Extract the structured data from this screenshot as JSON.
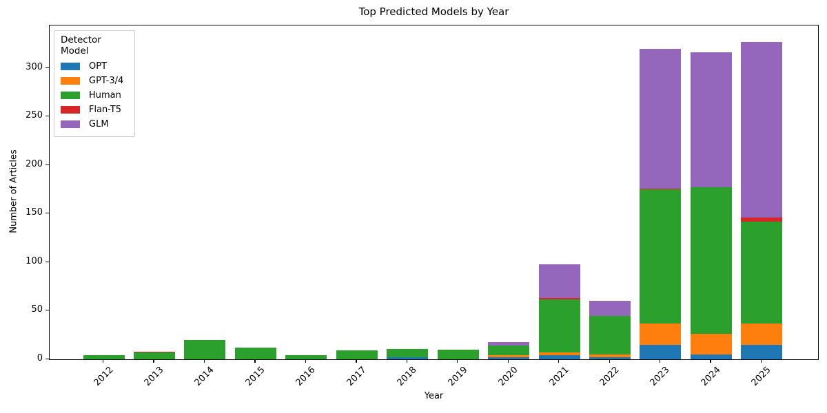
{
  "title": "Top Predicted Models by Year",
  "chart_data": {
    "type": "bar",
    "stacked": true,
    "title": "Top Predicted Models by Year",
    "xlabel": "Year",
    "ylabel": "Number of Articles",
    "legend_title": "Detector Model",
    "legend_position": "upper left",
    "grid": false,
    "ylim": [
      0,
      344
    ],
    "yticks": [
      0,
      50,
      100,
      150,
      200,
      250,
      300
    ],
    "categories": [
      "2012",
      "2013",
      "2014",
      "2015",
      "2016",
      "2017",
      "2018",
      "2019",
      "2020",
      "2021",
      "2022",
      "2023",
      "2024",
      "2025"
    ],
    "series": [
      {
        "name": "OPT",
        "color": "#1f77b4",
        "values": [
          0,
          0,
          0,
          0,
          0,
          0,
          2,
          0,
          2,
          4,
          2,
          15,
          5,
          15
        ]
      },
      {
        "name": "GPT-3/4",
        "color": "#ff7f0e",
        "values": [
          0,
          0,
          0,
          0,
          0,
          0,
          0,
          0,
          2,
          3,
          3,
          22,
          21,
          22
        ]
      },
      {
        "name": "Human",
        "color": "#2ca02c",
        "values": [
          4,
          7,
          20,
          12,
          4,
          9,
          9,
          10,
          10,
          55,
          40,
          138,
          151,
          105
        ]
      },
      {
        "name": "Flan-T5",
        "color": "#d62728",
        "values": [
          0,
          1,
          0,
          0,
          0,
          0,
          0,
          0,
          0,
          1,
          0,
          1,
          0,
          4
        ]
      },
      {
        "name": "GLM",
        "color": "#9467bd",
        "values": [
          0,
          0,
          0,
          0,
          0,
          0,
          0,
          0,
          4,
          35,
          15,
          144,
          139,
          181
        ]
      }
    ],
    "totals": [
      4,
      8,
      20,
      12,
      4,
      9,
      11,
      10,
      18,
      98,
      60,
      320,
      316,
      327
    ]
  }
}
